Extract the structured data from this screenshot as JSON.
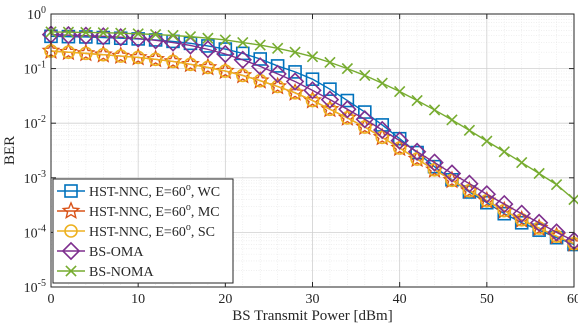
{
  "chart_data": {
    "type": "line",
    "xlabel": "BS Transmit Power [dBm]",
    "ylabel": "BER",
    "xlim": [
      0,
      60
    ],
    "ylim_log10": [
      -5,
      0
    ],
    "yscale": "log",
    "grid": true,
    "legend_position": "bottom-left",
    "x_ticks": [
      "0",
      "10",
      "20",
      "30",
      "40",
      "50",
      "60"
    ],
    "y_ticks": [
      {
        "base": "10",
        "exp": "0"
      },
      {
        "base": "10",
        "exp": "-1"
      },
      {
        "base": "10",
        "exp": "-2"
      },
      {
        "base": "10",
        "exp": "-3"
      },
      {
        "base": "10",
        "exp": "-4"
      },
      {
        "base": "10",
        "exp": "-5"
      }
    ],
    "series": [
      {
        "name": "HST-NNC, E=60",
        "name_sup": "o",
        "name_suffix": ", WC",
        "marker": "square",
        "color": "#0072BD",
        "x": [
          0,
          2,
          4,
          6,
          8,
          10,
          12,
          14,
          16,
          18,
          20,
          22,
          24,
          26,
          28,
          30,
          32,
          34,
          36,
          38,
          40,
          42,
          44,
          46,
          48,
          50,
          52,
          54,
          56,
          58,
          60
        ],
        "y": [
          0.39,
          0.385,
          0.38,
          0.37,
          0.36,
          0.35,
          0.335,
          0.315,
          0.29,
          0.26,
          0.228,
          0.19,
          0.15,
          0.112,
          0.087,
          0.064,
          0.042,
          0.026,
          0.016,
          0.0093,
          0.0052,
          0.0029,
          0.0016,
          0.00092,
          0.00055,
          0.00035,
          0.00022,
          0.00015,
          0.00011,
          8e-05,
          6e-05
        ]
      },
      {
        "name": "HST-NNC, E=60",
        "name_sup": "o",
        "name_suffix": ", MC",
        "marker": "star",
        "color": "#D95319",
        "x": [
          0,
          2,
          4,
          6,
          8,
          10,
          12,
          14,
          16,
          18,
          20,
          22,
          24,
          26,
          28,
          30,
          32,
          34,
          36,
          38,
          40,
          42,
          44,
          46,
          48,
          50,
          52,
          54,
          56,
          58,
          60
        ],
        "y": [
          0.21,
          0.2,
          0.19,
          0.18,
          0.17,
          0.16,
          0.148,
          0.135,
          0.12,
          0.105,
          0.09,
          0.075,
          0.06,
          0.047,
          0.036,
          0.026,
          0.018,
          0.0125,
          0.0085,
          0.0055,
          0.0035,
          0.0022,
          0.0014,
          0.0009,
          0.00058,
          0.00038,
          0.00025,
          0.00017,
          0.00012,
          8.5e-05,
          6.2e-05
        ]
      },
      {
        "name": "HST-NNC, E=60",
        "name_sup": "o",
        "name_suffix": ", SC",
        "marker": "circle",
        "color": "#EDB120",
        "x": [
          0,
          2,
          4,
          6,
          8,
          10,
          12,
          14,
          16,
          18,
          20,
          22,
          24,
          26,
          28,
          30,
          32,
          34,
          36,
          38,
          40,
          42,
          44,
          46,
          48,
          50,
          52,
          54,
          56,
          58,
          60
        ],
        "y": [
          0.21,
          0.2,
          0.19,
          0.18,
          0.17,
          0.16,
          0.148,
          0.135,
          0.12,
          0.105,
          0.09,
          0.075,
          0.06,
          0.047,
          0.036,
          0.026,
          0.018,
          0.0125,
          0.0085,
          0.0055,
          0.0035,
          0.0022,
          0.0014,
          0.0009,
          0.00058,
          0.00038,
          0.00025,
          0.00017,
          0.00012,
          8.5e-05,
          6.2e-05
        ]
      },
      {
        "name": "BS-OMA",
        "marker": "diamond",
        "color": "#7E2F8E",
        "x": [
          0,
          2,
          4,
          6,
          8,
          10,
          12,
          14,
          16,
          18,
          20,
          22,
          24,
          26,
          28,
          30,
          32,
          34,
          36,
          38,
          40,
          42,
          44,
          46,
          48,
          50,
          52,
          54,
          56,
          58,
          60
        ],
        "y": [
          0.42,
          0.41,
          0.4,
          0.39,
          0.375,
          0.355,
          0.33,
          0.3,
          0.265,
          0.225,
          0.185,
          0.145,
          0.11,
          0.08,
          0.058,
          0.04,
          0.027,
          0.018,
          0.0118,
          0.0075,
          0.0048,
          0.003,
          0.0019,
          0.0012,
          0.00078,
          0.0005,
          0.00033,
          0.00022,
          0.00015,
          0.0001,
          7e-05
        ]
      },
      {
        "name": "BS-NOMA",
        "marker": "x",
        "color": "#77AC30",
        "x": [
          0,
          2,
          4,
          6,
          8,
          10,
          12,
          14,
          16,
          18,
          20,
          22,
          24,
          26,
          28,
          30,
          32,
          34,
          36,
          38,
          40,
          42,
          44,
          46,
          48,
          50,
          52,
          54,
          56,
          58,
          60
        ],
        "y": [
          0.47,
          0.465,
          0.46,
          0.455,
          0.445,
          0.435,
          0.42,
          0.405,
          0.385,
          0.36,
          0.335,
          0.3,
          0.27,
          0.235,
          0.2,
          0.165,
          0.13,
          0.1,
          0.075,
          0.054,
          0.038,
          0.026,
          0.0175,
          0.0115,
          0.0074,
          0.0047,
          0.003,
          0.0019,
          0.0012,
          0.00075,
          0.0004
        ]
      }
    ]
  }
}
